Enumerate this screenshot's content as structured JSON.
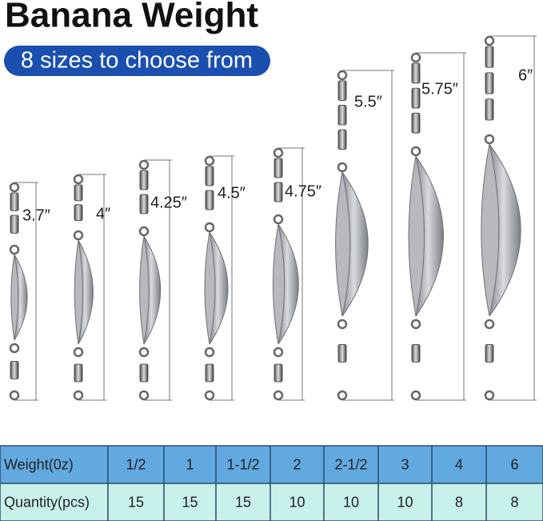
{
  "header": {
    "title": "Banana Weight",
    "subtitle": "8 sizes to choose from"
  },
  "sizes": [
    "3.7″",
    "4″",
    "4.25″",
    "4.5″",
    "4.75″",
    "5.5″",
    "5.75″",
    "6″"
  ],
  "table": {
    "rows": [
      [
        "Weight(0z)",
        "1/2",
        "1",
        "1-1/2",
        "2",
        "2-1/2",
        "3",
        "4",
        "6"
      ],
      [
        "Quantity(pcs)",
        "15",
        "15",
        "15",
        "10",
        "10",
        "10",
        "8",
        "8"
      ]
    ]
  }
}
